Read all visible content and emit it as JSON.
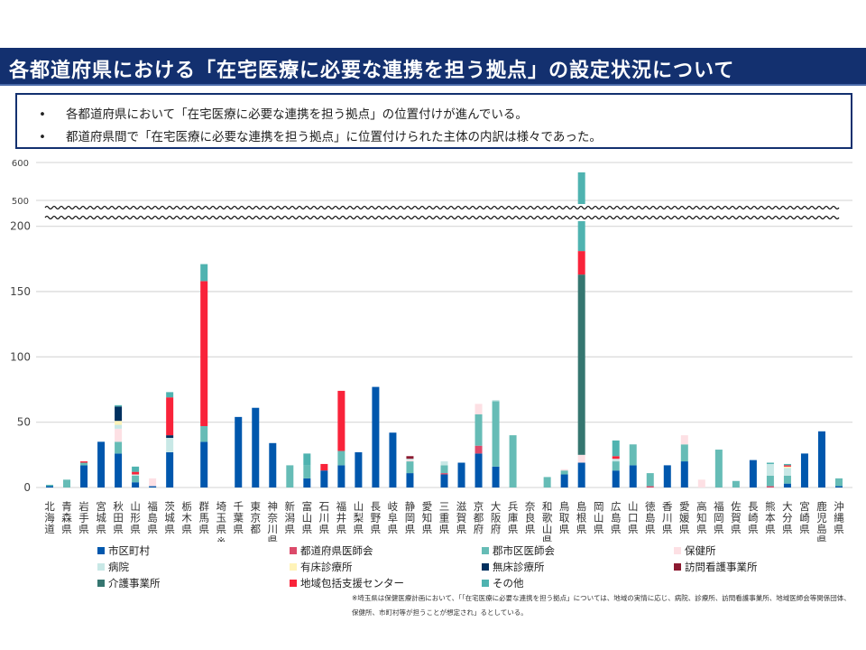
{
  "title": "各都道府県における「在宅医療に必要な連携を担う拠点」の設定状況について",
  "bullets": [
    "各都道府県において「在宅医療に必要な連携を担う拠点」の位置付けが進んでいる。",
    "都道府県間で「在宅医療に必要な連携を担う拠点」に位置付けられた主体の内訳は様々であった。"
  ],
  "footnote": [
    "※埼玉県は保健医療計画において、「「在宅医療に必要な連携を担う拠点」については、地域の実情に応じ、病院、診療所、訪問看護事業所、地域医師会等関係団体、",
    "保健所、市町村等が担うことが想定され」るとしている。"
  ],
  "chart_data": {
    "type": "bar",
    "stacked": true,
    "title": "",
    "xlabel": "",
    "ylabel": "",
    "ylim": [
      0,
      600
    ],
    "axis_break": [
      200,
      500
    ],
    "yticks": [
      0,
      50,
      100,
      150,
      200,
      500,
      600
    ],
    "grid": true,
    "legend_position": "bottom",
    "categories": [
      "北海道",
      "青森県",
      "岩手県",
      "宮城県",
      "秋田県",
      "山形県",
      "福島県",
      "茨城県",
      "栃木県",
      "群馬県",
      "埼玉県※",
      "千葉県",
      "東京都",
      "神奈川県",
      "新潟県",
      "富山県",
      "石川県",
      "福井県",
      "山梨県",
      "長野県",
      "岐阜県",
      "静岡県",
      "愛知県",
      "三重県",
      "滋賀県",
      "京都府",
      "大阪府",
      "兵庫県",
      "奈良県",
      "和歌山県",
      "鳥取県",
      "島根県",
      "岡山県",
      "広島県",
      "山口県",
      "徳島県",
      "香川県",
      "愛媛県",
      "高知県",
      "福岡県",
      "佐賀県",
      "長崎県",
      "熊本県",
      "大分県",
      "宮崎県",
      "鹿児島県",
      "沖縄県"
    ],
    "series": [
      {
        "name": "市区町村",
        "color": "#0057ad",
        "values": [
          1,
          0,
          17,
          35,
          26,
          4,
          1,
          27,
          0,
          35,
          0,
          54,
          61,
          34,
          0,
          7,
          13,
          17,
          27,
          77,
          42,
          11,
          0,
          10,
          19,
          26,
          16,
          0,
          0,
          0,
          10,
          19,
          0,
          13,
          17,
          0,
          17,
          20,
          0,
          0,
          0,
          21,
          0,
          3,
          26,
          43,
          1
        ]
      },
      {
        "name": "都道府県医師会",
        "color": "#dc4a6a",
        "values": [
          0,
          0,
          0,
          0,
          0,
          0,
          0,
          0,
          0,
          0,
          0,
          0,
          0,
          0,
          0,
          0,
          0,
          0,
          0,
          0,
          0,
          0,
          0,
          1,
          0,
          6,
          0,
          0,
          0,
          0,
          0,
          0,
          0,
          0,
          0,
          1,
          0,
          0,
          0,
          0,
          0,
          0,
          1,
          0,
          0,
          0,
          0
        ]
      },
      {
        "name": "郡市区医師会",
        "color": "#66bcb6",
        "values": [
          0,
          6,
          2,
          0,
          9,
          5,
          0,
          0,
          0,
          12,
          0,
          0,
          0,
          0,
          17,
          10,
          0,
          11,
          0,
          0,
          0,
          9,
          0,
          6,
          0,
          24,
          50,
          40,
          0,
          8,
          3,
          0,
          0,
          7,
          16,
          10,
          0,
          13,
          0,
          29,
          5,
          0,
          8,
          6,
          0,
          0,
          6
        ]
      },
      {
        "name": "保健所",
        "color": "#fde0e4",
        "values": [
          0,
          0,
          0,
          0,
          10,
          0,
          6,
          0,
          0,
          0,
          0,
          0,
          0,
          0,
          0,
          0,
          0,
          0,
          0,
          0,
          0,
          1,
          0,
          0,
          0,
          8,
          0,
          0,
          0,
          0,
          1,
          6,
          0,
          0,
          0,
          0,
          0,
          7,
          6,
          0,
          0,
          0,
          0,
          0,
          0,
          0,
          0
        ]
      },
      {
        "name": "病院",
        "color": "#c8e8e6",
        "values": [
          0,
          0,
          0,
          0,
          3,
          1,
          0,
          11,
          0,
          0,
          0,
          0,
          0,
          0,
          0,
          0,
          0,
          0,
          0,
          0,
          0,
          1,
          0,
          3,
          0,
          0,
          1,
          0,
          0,
          0,
          0,
          0,
          0,
          2,
          0,
          0,
          0,
          0,
          0,
          0,
          0,
          0,
          9,
          6,
          0,
          0,
          0
        ]
      },
      {
        "name": "有床診療所",
        "color": "#fff3b8",
        "values": [
          0,
          0,
          0,
          0,
          3,
          0,
          0,
          0,
          0,
          0,
          0,
          0,
          0,
          0,
          0,
          0,
          0,
          0,
          0,
          0,
          0,
          0,
          0,
          0,
          0,
          0,
          0,
          0,
          0,
          0,
          0,
          0,
          0,
          0,
          0,
          0,
          0,
          0,
          0,
          0,
          0,
          0,
          0,
          1,
          0,
          0,
          0
        ]
      },
      {
        "name": "無床診療所",
        "color": "#00305f",
        "values": [
          0,
          0,
          0,
          0,
          11,
          0,
          0,
          2,
          0,
          0,
          0,
          0,
          0,
          0,
          0,
          0,
          0,
          0,
          0,
          0,
          0,
          0,
          0,
          0,
          0,
          0,
          0,
          0,
          0,
          0,
          0,
          0,
          0,
          0,
          0,
          0,
          0,
          0,
          0,
          0,
          0,
          0,
          0,
          0,
          0,
          0,
          0
        ]
      },
      {
        "name": "訪問看護事業所",
        "color": "#8c1a30",
        "values": [
          0,
          0,
          0,
          0,
          0,
          0,
          0,
          0,
          0,
          0,
          0,
          0,
          0,
          0,
          0,
          0,
          0,
          0,
          0,
          0,
          0,
          2,
          0,
          0,
          0,
          0,
          0,
          0,
          0,
          0,
          0,
          0,
          0,
          0,
          0,
          0,
          0,
          0,
          0,
          0,
          0,
          0,
          0,
          0,
          0,
          0,
          0
        ]
      },
      {
        "name": "介護事業所",
        "color": "#357670",
        "values": [
          0,
          0,
          0,
          0,
          0,
          0,
          0,
          0,
          0,
          0,
          0,
          0,
          0,
          0,
          0,
          0,
          0,
          0,
          0,
          0,
          0,
          0,
          0,
          0,
          0,
          0,
          0,
          0,
          0,
          0,
          0,
          138,
          0,
          0,
          0,
          0,
          0,
          0,
          0,
          0,
          0,
          0,
          0,
          0,
          0,
          0,
          0
        ]
      },
      {
        "name": "地域包括支援センター",
        "color": "#f9233a",
        "values": [
          0,
          0,
          1,
          0,
          0,
          2,
          0,
          29,
          0,
          111,
          0,
          0,
          0,
          0,
          0,
          0,
          5,
          46,
          0,
          0,
          0,
          0,
          0,
          0,
          0,
          0,
          0,
          0,
          0,
          0,
          0,
          18,
          0,
          2,
          0,
          0,
          0,
          0,
          0,
          0,
          0,
          0,
          0,
          1,
          0,
          0,
          0
        ]
      },
      {
        "name": "その他",
        "color": "#4fb3b0",
        "values": [
          1,
          0,
          0,
          0,
          1,
          4,
          0,
          4,
          0,
          13,
          0,
          0,
          0,
          0,
          0,
          9,
          0,
          0,
          0,
          0,
          0,
          0,
          0,
          0,
          0,
          0,
          0,
          0,
          0,
          0,
          0,
          393,
          0,
          12,
          0,
          0,
          0,
          0,
          0,
          0,
          0,
          0,
          1,
          1,
          0,
          0,
          0
        ]
      }
    ]
  }
}
